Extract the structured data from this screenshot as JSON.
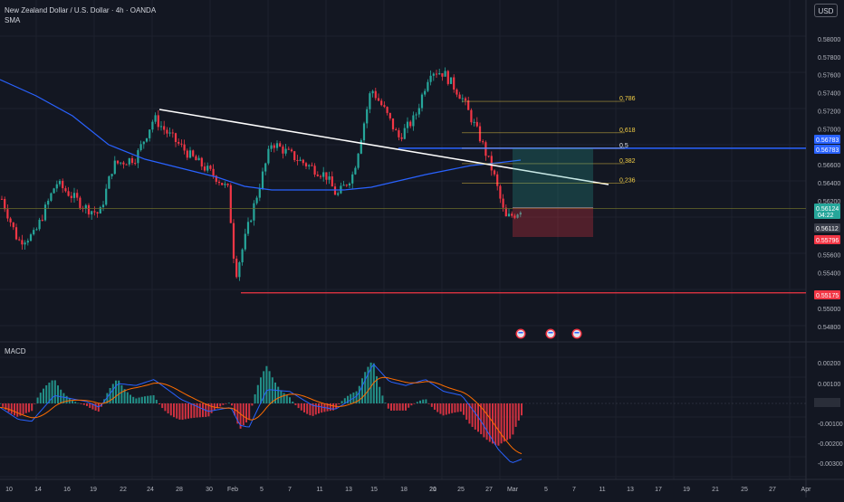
{
  "header": {
    "symbol_line": "New Zealand Dollar / U.S. Dollar · 4h · OANDA",
    "indicator": "SMA",
    "currency_button": "USD"
  },
  "macd_label": "MACD",
  "price_axis": {
    "labels": [
      "0.58000",
      "0.57800",
      "0.57600",
      "0.57400",
      "0.57200",
      "0.57000",
      "0.56600",
      "0.56400",
      "0.56200",
      "0.55600",
      "0.55400",
      "0.55000",
      "0.54800"
    ],
    "macd_labels": [
      "0.00200",
      "0.00100",
      "0.00000",
      "-0.00100",
      "-0.00200",
      "-0.00300"
    ]
  },
  "price_tags": [
    {
      "value": "0.56783",
      "color": "#2962ff"
    },
    {
      "value": "0.56783",
      "color": "#2962ff"
    },
    {
      "value": "0.56124",
      "color": "#26a69a",
      "sub": "04:22"
    },
    {
      "value": "0.56112",
      "color": "#3a3e4a"
    },
    {
      "value": "0.55796",
      "color": "#f23645"
    },
    {
      "value": "0.55175",
      "color": "#f23645"
    }
  ],
  "fib_levels": [
    {
      "label": "0.786",
      "price": 0.57305
    },
    {
      "label": "0.618",
      "price": 0.56955
    },
    {
      "label": "0.5",
      "price": 0.56783
    },
    {
      "label": "0.382",
      "price": 0.56612
    },
    {
      "label": "0.236",
      "price": 0.56395
    }
  ],
  "time_axis": [
    "10",
    "14",
    "16",
    "19",
    "22",
    "24",
    "28",
    "30",
    "Feb",
    "5",
    "7",
    "11",
    "13",
    "15",
    "18",
    "20",
    "21",
    "25",
    "27",
    "Mar",
    "5",
    "7",
    "11",
    "13",
    "17",
    "19",
    "21",
    "25",
    "27",
    "Apr"
  ],
  "colors": {
    "up": "#26a69a",
    "down": "#f23645",
    "sma": "#2962ff",
    "trendline": "#ffffff",
    "fib": "#f5d046",
    "macd_line": "#2962ff",
    "signal_line": "#ff6d00",
    "bg": "#131722"
  },
  "icons": [
    "flag-icon",
    "flag-icon",
    "flag-icon"
  ],
  "chart_data": {
    "type": "candlestick",
    "series": [
      {
        "name": "SMA",
        "values": [
          0.5758,
          0.5745,
          0.5728,
          0.5712,
          0.5698,
          0.5688,
          0.5676,
          0.5666,
          0.5658,
          0.565,
          0.5644,
          0.564,
          0.5637,
          0.5636,
          0.5638,
          0.5641,
          0.5646,
          0.5652,
          0.5659,
          0.5667
        ]
      }
    ],
    "levels": {
      "current": 0.56124,
      "stop_loss": 0.55796,
      "target": 0.56783,
      "support_line": 0.55175
    },
    "ylim": [
      0.5475,
      0.581
    ]
  }
}
